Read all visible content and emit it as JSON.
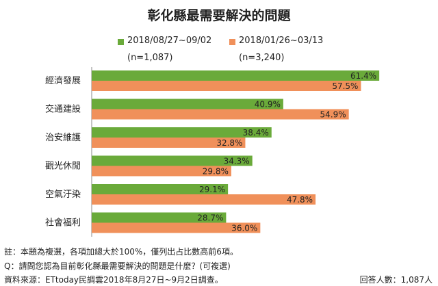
{
  "title": "彰化縣最需要解決的問題",
  "legend": [
    {
      "label": "2018/08/27~09/02",
      "n": "(n=1,087)",
      "color": "#6aaa3a"
    },
    {
      "label": "2018/01/26~03/13",
      "n": "(n=3,240)",
      "color": "#f0905a"
    }
  ],
  "chart_data": {
    "type": "bar",
    "orientation": "horizontal",
    "categories": [
      "經濟發展",
      "交通建設",
      "治安維護",
      "觀光休閒",
      "空氣汙染",
      "社會福利"
    ],
    "series": [
      {
        "name": "2018/08/27~09/02",
        "values": [
          61.4,
          40.9,
          38.4,
          34.3,
          29.1,
          28.7
        ],
        "color": "#6aaa3a"
      },
      {
        "name": "2018/01/26~03/13",
        "values": [
          57.5,
          54.9,
          32.8,
          29.8,
          47.8,
          36.0
        ],
        "color": "#f0905a"
      }
    ],
    "value_suffix": "%",
    "xlim": [
      0,
      70
    ]
  },
  "notes": {
    "note1": "註：本題為複選，各項加總大於100%，僅列出占比數高前6項。",
    "note2": "Q：請問您認為目前彰化縣最需要解決的問題是什麼？(可複選)",
    "source": "資料來源：ETtoday民調雲2018年8月27日~9月2日調查。",
    "respondents": "回答人數：1,087人"
  }
}
